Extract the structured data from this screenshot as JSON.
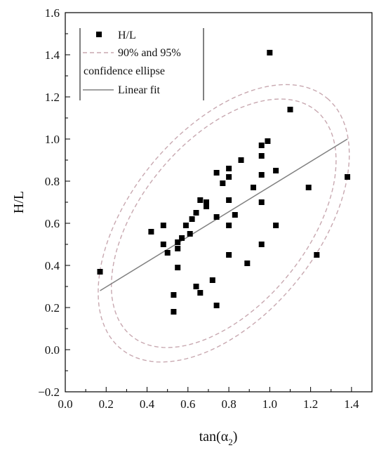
{
  "chart_data": {
    "type": "scatter",
    "title": "",
    "xlabel": "tan(α",
    "xlabel_sub": "2",
    "xlabel_close": ")",
    "ylabel": "H/L",
    "xlim": [
      0.0,
      1.5
    ],
    "ylim": [
      -0.2,
      1.6
    ],
    "x_ticks": [
      0.0,
      0.2,
      0.4,
      0.6,
      0.8,
      1.0,
      1.2,
      1.4
    ],
    "x_tick_labels": [
      "0.0",
      "0.2",
      "0.4",
      "0.6",
      "0.8",
      "1.0",
      "1.2",
      "1.4"
    ],
    "y_ticks": [
      -0.2,
      0.0,
      0.2,
      0.4,
      0.6,
      0.8,
      1.0,
      1.2,
      1.4,
      1.6
    ],
    "y_tick_labels": [
      "−0.2",
      "0.0",
      "0.2",
      "0.4",
      "0.6",
      "0.8",
      "1.0",
      "1.2",
      "1.4",
      "1.6"
    ],
    "grid": false,
    "legend_position": "top-left",
    "legend": {
      "points_label": "H/L",
      "ellipse_label_line1": "90% and 95%",
      "ellipse_label_line2": "confidence ellipse",
      "fit_label": "Linear fit"
    },
    "colors": {
      "points": "#000000",
      "fit_line": "#808080",
      "ellipse": "#c8a8b0"
    },
    "series": [
      {
        "name": "H/L",
        "kind": "points",
        "points": [
          [
            0.17,
            0.37
          ],
          [
            0.42,
            0.56
          ],
          [
            0.48,
            0.59
          ],
          [
            0.48,
            0.5
          ],
          [
            0.5,
            0.46
          ],
          [
            0.53,
            0.26
          ],
          [
            0.53,
            0.18
          ],
          [
            0.55,
            0.51
          ],
          [
            0.55,
            0.48
          ],
          [
            0.55,
            0.39
          ],
          [
            0.57,
            0.53
          ],
          [
            0.59,
            0.59
          ],
          [
            0.61,
            0.55
          ],
          [
            0.62,
            0.62
          ],
          [
            0.64,
            0.65
          ],
          [
            0.64,
            0.3
          ],
          [
            0.66,
            0.71
          ],
          [
            0.66,
            0.27
          ],
          [
            0.69,
            0.7
          ],
          [
            0.69,
            0.68
          ],
          [
            0.72,
            0.33
          ],
          [
            0.74,
            0.84
          ],
          [
            0.74,
            0.63
          ],
          [
            0.74,
            0.21
          ],
          [
            0.77,
            0.79
          ],
          [
            0.8,
            0.86
          ],
          [
            0.8,
            0.82
          ],
          [
            0.8,
            0.71
          ],
          [
            0.8,
            0.59
          ],
          [
            0.8,
            0.45
          ],
          [
            0.83,
            0.64
          ],
          [
            0.86,
            0.9
          ],
          [
            0.89,
            0.41
          ],
          [
            0.92,
            0.77
          ],
          [
            0.96,
            0.97
          ],
          [
            0.96,
            0.92
          ],
          [
            0.96,
            0.83
          ],
          [
            0.96,
            0.7
          ],
          [
            0.96,
            0.5
          ],
          [
            0.99,
            0.99
          ],
          [
            1.0,
            1.41
          ],
          [
            1.03,
            0.85
          ],
          [
            1.03,
            0.59
          ],
          [
            1.1,
            1.14
          ],
          [
            1.19,
            0.77
          ],
          [
            1.23,
            0.45
          ],
          [
            1.38,
            0.82
          ]
        ]
      },
      {
        "name": "Linear fit",
        "kind": "line",
        "x": [
          0.17,
          1.38
        ],
        "y": [
          0.28,
          1.0
        ]
      },
      {
        "name": "90% confidence ellipse",
        "kind": "ellipse",
        "center": [
          0.775,
          0.6
        ],
        "semi_major": 0.7,
        "semi_minor": 0.4,
        "angle_deg": 49
      },
      {
        "name": "95% confidence ellipse",
        "kind": "ellipse",
        "center": [
          0.775,
          0.6
        ],
        "semi_major": 0.78,
        "semi_minor": 0.45,
        "angle_deg": 49
      }
    ]
  }
}
